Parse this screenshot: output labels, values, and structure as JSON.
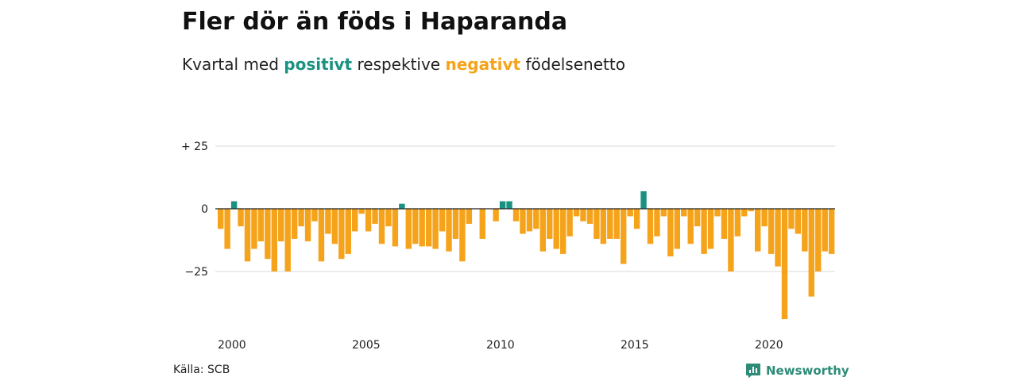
{
  "title": "Fler dör än föds i Haparanda",
  "subtitle": {
    "before": "Kvartal med ",
    "positive_word": "positivt",
    "middle": " respektive ",
    "negative_word": "negativt",
    "after": " födelsenetto"
  },
  "colors": {
    "positive": "#1a9282",
    "negative": "#f5a31a",
    "grid": "#d9d9d9",
    "brand": "#2e8b78"
  },
  "source": "Källa: SCB",
  "brand": {
    "name": "Newsworthy",
    "icon": "newsworthy-logo-icon"
  },
  "chart_data": {
    "type": "bar",
    "title": "Fler dör än föds i Haparanda",
    "subtitle": "Kvartal med positivt respektive negativt födelsenetto",
    "xlabel": "",
    "ylabel": "",
    "start_year": 2000,
    "periods_per_year": 4,
    "x_ticks": [
      "2000",
      "2005",
      "2010",
      "2015",
      "2020"
    ],
    "y_ticks": [
      {
        "value": 25,
        "label": "+ 25"
      },
      {
        "value": 0,
        "label": "0"
      },
      {
        "value": -25,
        "label": "−25"
      }
    ],
    "ylim": [
      -44,
      36
    ],
    "grid": true,
    "legend": "none",
    "series": [
      {
        "values": [
          -8,
          -16,
          3,
          -7,
          -21,
          -16,
          -13,
          -20,
          -25,
          -13,
          -25,
          -12,
          -7,
          -13,
          -5,
          -21,
          -10,
          -14,
          -20,
          -18,
          -9,
          -2,
          -9,
          -6,
          -14,
          -7,
          -15,
          2,
          -16,
          -14,
          -15,
          -15,
          -16,
          -9,
          -17,
          -12,
          -21,
          -6,
          0,
          -12,
          0,
          -5,
          3,
          3,
          -5,
          -10,
          -9,
          -8,
          -17,
          -12,
          -16,
          -18,
          -11,
          -3,
          -5,
          -6,
          -12,
          -14,
          -12,
          -12,
          -22,
          -3,
          -8,
          7,
          -14,
          -11,
          -3,
          -19,
          -16,
          -3,
          -14,
          -7,
          -18,
          -16,
          -3,
          -12,
          -25,
          -11,
          -3,
          -1,
          -17,
          -7,
          -18,
          -23,
          -44,
          -8,
          -10,
          -17,
          -35,
          -25,
          -17,
          -18
        ]
      }
    ]
  }
}
